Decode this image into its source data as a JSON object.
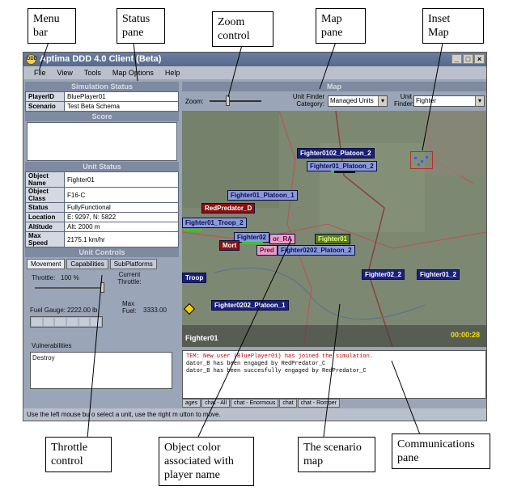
{
  "annotations": {
    "menu_bar": [
      "Menu",
      "bar"
    ],
    "status_pane": [
      "Status",
      "pane"
    ],
    "zoom_control": [
      "Zoom",
      "control"
    ],
    "map_pane": [
      "Map",
      "pane"
    ],
    "inset_map": [
      "Inset",
      "Map"
    ],
    "throttle_control": [
      "Throttle",
      "control"
    ],
    "object_color": [
      "Object color",
      "associated with",
      "player name"
    ],
    "scenario_map": [
      "The scenario",
      "map"
    ],
    "communications_pane": [
      "Communications",
      "pane"
    ]
  },
  "window": {
    "title": "Aptima DDD 4.0 Client (Beta)",
    "menu": [
      "File",
      "View",
      "Tools",
      "Map Options",
      "Help"
    ]
  },
  "simulation_status": {
    "header": "Simulation Status",
    "rows": [
      {
        "label": "PlayerID",
        "value": "BluePlayer01"
      },
      {
        "label": "Scenario",
        "value": "Test Beta Schema"
      }
    ]
  },
  "score": {
    "header": "Score"
  },
  "unit_status": {
    "header": "Unit Status",
    "rows": [
      {
        "label": "Object Name",
        "value": "Fighter01"
      },
      {
        "label": "Object Class",
        "value": "F16-C"
      },
      {
        "label": "Status",
        "value": "FullyFunctional"
      },
      {
        "label": "Location",
        "value": "E: 9297, N: 5822"
      },
      {
        "label": "Altitude",
        "value": "Alt: 2000 m"
      },
      {
        "label": "Max Speed",
        "value": "2175.1 km/hr"
      }
    ]
  },
  "unit_controls": {
    "header": "Unit Controls",
    "tabs": [
      "Movement",
      "Capabilities",
      "SubPlatforms"
    ],
    "throttle_label": "Throttle:",
    "throttle_value": "100 %",
    "throttle_fraction": 1.0,
    "current_throttle_label": "Current Throttle:",
    "fuel_gauge_label": "Fuel Gauge:",
    "fuel_gauge_value": "2222.00 lb",
    "max_fuel_label": "Max Fuel:",
    "max_fuel_value": "3333.00",
    "vulnerabilities_label": "Vulnerabilities",
    "vulnerabilities": [
      "Destroy"
    ]
  },
  "map": {
    "header": "Map",
    "zoom_label": "Zoom:",
    "unit_finder_category_label": "Unit Finder Category:",
    "unit_finder_category_value": "Managed Units",
    "unit_finder_label": "Unit Finder:",
    "unit_finder_value": "Fighter",
    "clock": "00:00:28",
    "selected_label": "Fighter01",
    "units": [
      "Fighter0102_Platoon_2",
      "Fighter01_Platoon_2",
      "Fighter01_Platoon_1",
      "RedPredator_D",
      "Fighter01_Troop_2",
      "Fighter02",
      "Fighter01",
      "Mort",
      "or_RA",
      "Pred",
      "Fighter0202_Platoon_2",
      "Troop",
      "Fighter02_2",
      "Fighter01_2",
      "Fighter0202_Platoon_1"
    ]
  },
  "communications": {
    "messages": [
      {
        "text": "TEM: New user (BluePlayer01) has joined the simulation.",
        "color": "#c00000"
      },
      {
        "text": "dator_B has been engaged by RedPredator_C",
        "color": "#000000"
      },
      {
        "text": "dator_B has been succesfully engaged by RedPredator_C",
        "color": "#000000"
      }
    ],
    "tabs": [
      "ages",
      "chat - All",
      "chat - Enormous",
      "chat",
      "chat - Romper"
    ]
  },
  "statusbar": {
    "text": "Use the left mouse bu    o select a unit, use the right m     utton to move."
  },
  "colors": {
    "blue_unit": "#1a1f7a",
    "red_unit": "#8a1010",
    "map_terrain": "#7c8872",
    "clock": "#f0e000"
  }
}
